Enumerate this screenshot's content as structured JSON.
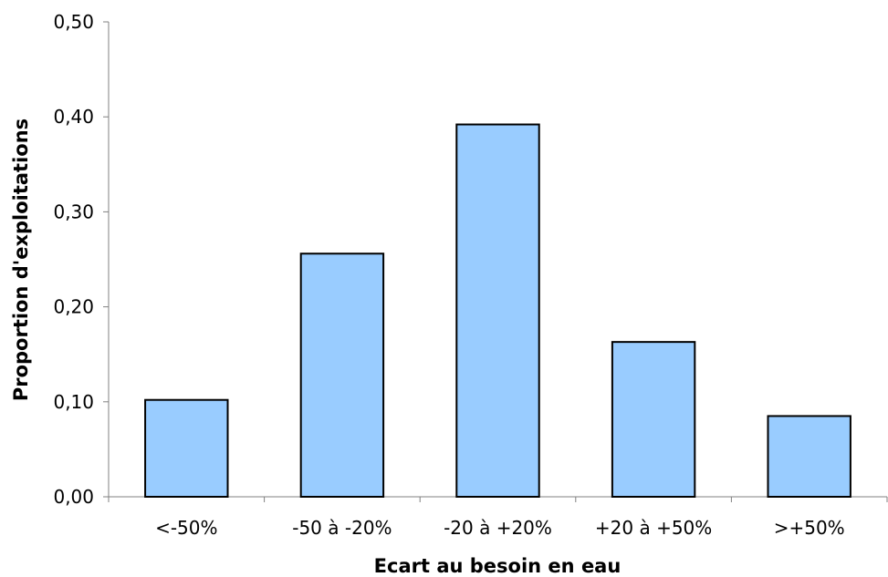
{
  "chart_data": {
    "type": "bar",
    "categories": [
      "<-50%",
      "-50 à -20%",
      "-20 à +20%",
      "+20 à +50%",
      ">+50%"
    ],
    "values": [
      0.102,
      0.256,
      0.392,
      0.163,
      0.085
    ],
    "xlabel": "Ecart au besoin en eau",
    "ylabel": "Proportion d'exploitations",
    "ylim": [
      0,
      0.5
    ],
    "yticks": [
      "0,00",
      "0,10",
      "0,20",
      "0,30",
      "0,40",
      "0,50"
    ],
    "grid": false,
    "bar_color": "#99ccff"
  }
}
